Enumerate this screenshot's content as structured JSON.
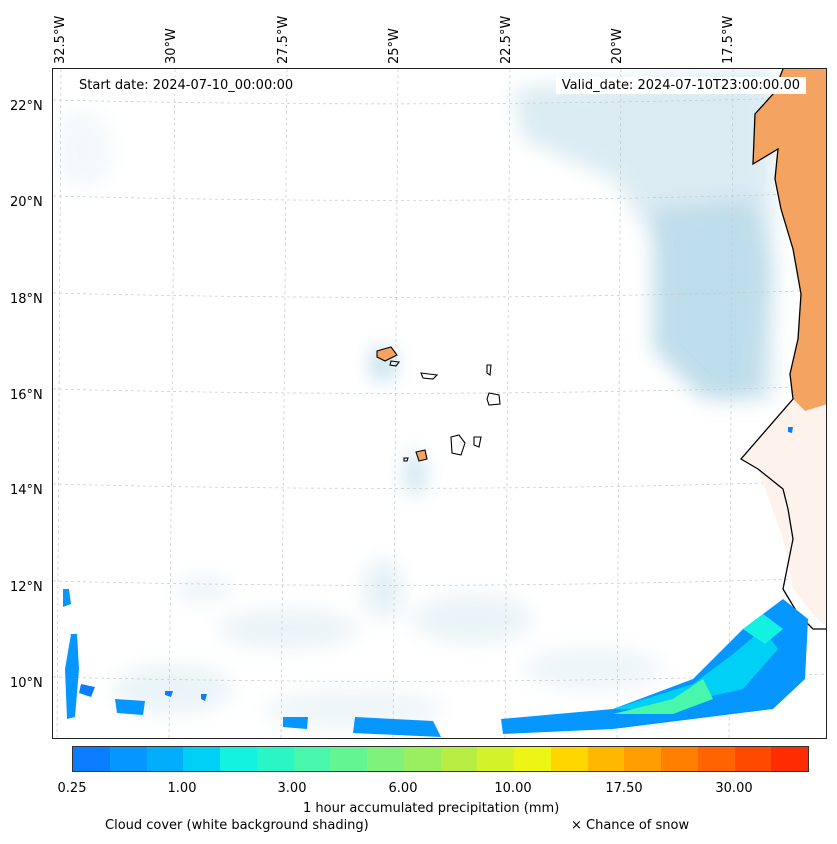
{
  "longitude_labels": [
    "32.5°W",
    "30°W",
    "27.5°W",
    "25°W",
    "22.5°W",
    "20°W",
    "17.5°W"
  ],
  "latitude_labels": [
    "22°N",
    "20°N",
    "18°N",
    "16°N",
    "14°N",
    "12°N",
    "10°N"
  ],
  "start_date": "Start date: 2024-07-10_00:00:00",
  "valid_date": "Valid_date: 2024-07-10T23:00:00.00",
  "colorbar": {
    "colors": [
      "#0a7cff",
      "#0596ff",
      "#00aefa",
      "#00d0f5",
      "#13f2e0",
      "#2af5c5",
      "#48f7ab",
      "#63f591",
      "#7ef27a",
      "#9aef5e",
      "#b8ee44",
      "#d4f22a",
      "#ecf514",
      "#ffd600",
      "#ffb800",
      "#ff9c00",
      "#ff8000",
      "#ff6400",
      "#ff4800",
      "#ff2c00"
    ],
    "tick_labels": [
      "0.25",
      "1.00",
      "3.00",
      "6.00",
      "10.00",
      "17.50",
      "30.00"
    ],
    "title": "1 hour accumulated precipitation (mm)"
  },
  "legend": {
    "cloud_cover": "Cloud cover (white background shading)",
    "snow": "× Chance of snow"
  }
}
